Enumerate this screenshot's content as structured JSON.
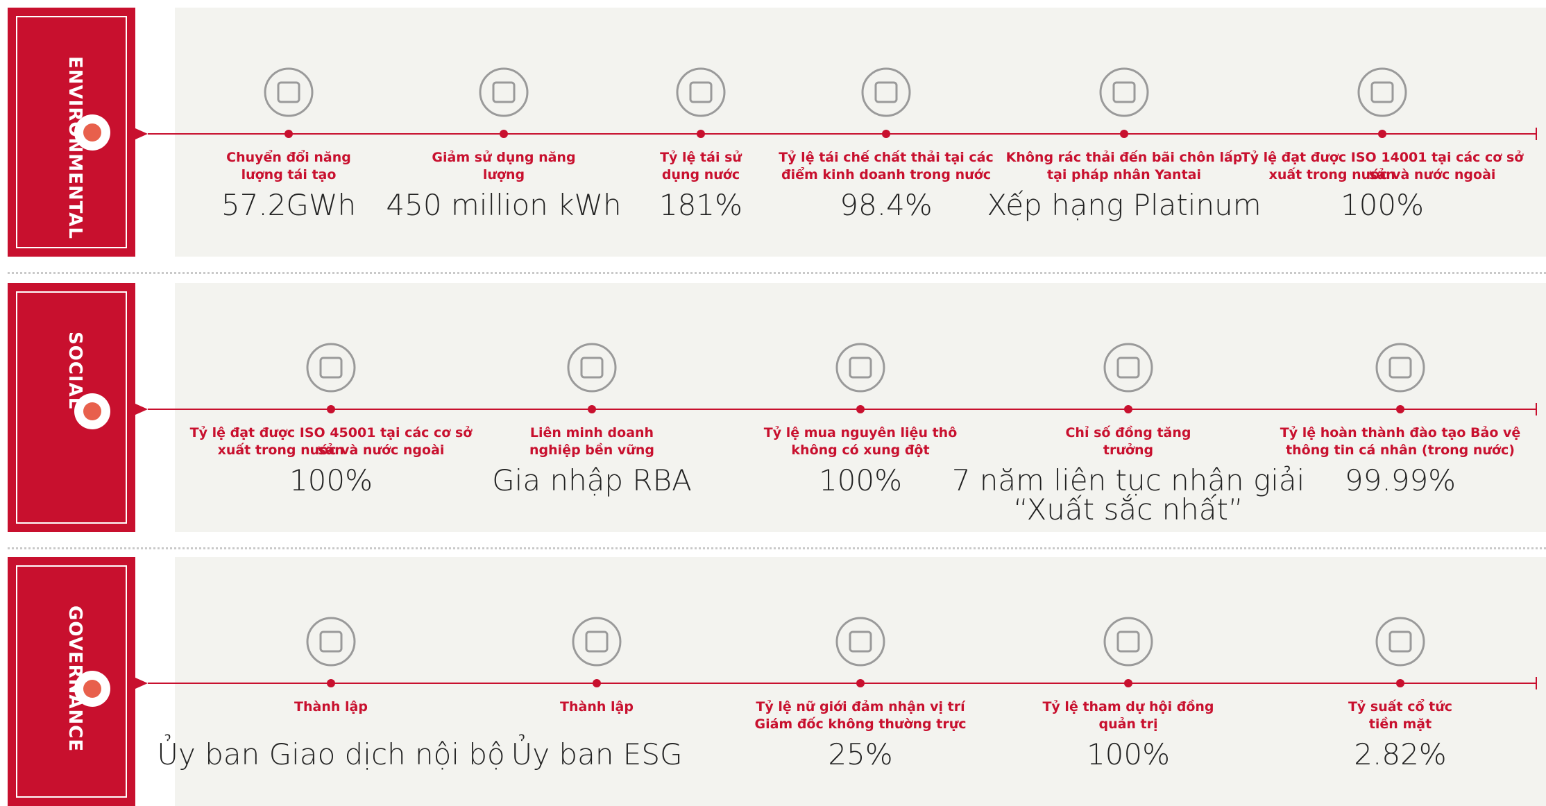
{
  "sections": [
    {
      "label": "ENVIRONMENTAL",
      "items": [
        {
          "label": [
            "Chuyển đổi năng",
            "lượng tái tạo"
          ],
          "value": [
            "57.2GWh"
          ]
        },
        {
          "label": [
            "Giảm sử dụng năng",
            "lượng"
          ],
          "value": [
            "450 million kWh"
          ]
        },
        {
          "label": [
            "Tỷ lệ tái sử",
            "dụng nước"
          ],
          "value": [
            "181%"
          ]
        },
        {
          "label": [
            "Tỷ lệ tái chế chất thải tại các",
            "điểm kinh doanh trong nước"
          ],
          "value": [
            "98.4%"
          ]
        },
        {
          "label": [
            "Không rác thải đến bãi chôn lấp",
            "tại pháp nhân Yantai"
          ],
          "value": [
            "Xếp hạng Platinum"
          ]
        },
        {
          "label": [
            "Tỷ lệ đạt được ISO 14001 tại các cơ sở sản",
            "xuất trong nước và nước ngoài"
          ],
          "value": [
            "100%"
          ]
        }
      ]
    },
    {
      "label": "SOCIAL",
      "items": [
        {
          "label": [
            "Tỷ lệ đạt được ISO 45001 tại các cơ sở sản",
            "xuất trong nước và nước ngoài"
          ],
          "value": [
            "100%"
          ]
        },
        {
          "label": [
            "Liên minh doanh",
            "nghiệp bền vững"
          ],
          "value": [
            "Gia nhập RBA"
          ]
        },
        {
          "label": [
            "Tỷ lệ mua nguyên liệu thô",
            "không có xung đột"
          ],
          "value": [
            "100%"
          ]
        },
        {
          "label": [
            "Chỉ số đồng tăng",
            "trưởng"
          ],
          "value": [
            "7 năm liên tục nhận giải",
            "“Xuất sắc nhất”"
          ]
        },
        {
          "label": [
            "Tỷ lệ hoàn thành đào tạo Bảo vệ",
            "thông tin cá nhân (trong nước)"
          ],
          "value": [
            "99.99%"
          ]
        }
      ]
    },
    {
      "label": "GOVERNANCE",
      "items": [
        {
          "label": [
            "Thành lập"
          ],
          "value": [
            "Ủy ban Giao dịch nội bộ"
          ]
        },
        {
          "label": [
            "Thành lập"
          ],
          "value": [
            "Ủy ban ESG"
          ]
        },
        {
          "label": [
            "Tỷ lệ nữ giới đảm nhận vị trí",
            "Giám đốc không thường trực"
          ],
          "value": [
            "25%"
          ]
        },
        {
          "label": [
            "Tỷ lệ tham dự hội đồng",
            "quản trị"
          ],
          "value": [
            "100%"
          ]
        },
        {
          "label": [
            "Tỷ suất cổ tức",
            "tiền mặt"
          ],
          "value": [
            "2.82%"
          ]
        }
      ]
    }
  ]
}
